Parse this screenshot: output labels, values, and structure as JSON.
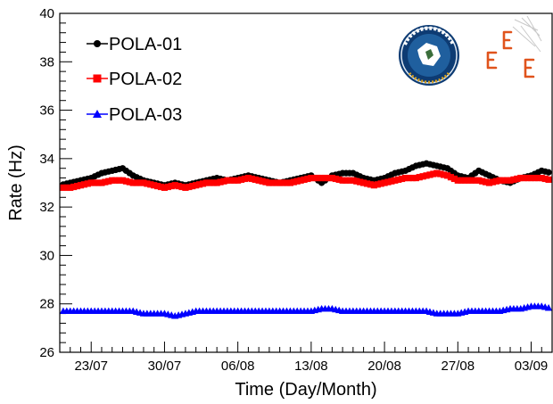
{
  "chart_data": {
    "type": "scatter",
    "xlabel": "Time (Day/Month)",
    "ylabel": "Rate (Hz)",
    "ylim": [
      26,
      40
    ],
    "yticks": [
      26,
      28,
      30,
      32,
      34,
      36,
      38,
      40
    ],
    "xlim": [
      "2017-07-20",
      "2017-09-05"
    ],
    "xticks": [
      {
        "date": "2017-07-23",
        "label": "23/07"
      },
      {
        "date": "2017-07-30",
        "label": "30/07"
      },
      {
        "date": "2017-08-06",
        "label": "06/08"
      },
      {
        "date": "2017-08-13",
        "label": "13/08"
      },
      {
        "date": "2017-08-20",
        "label": "20/08"
      },
      {
        "date": "2017-08-27",
        "label": "27/08"
      },
      {
        "date": "2017-09-03",
        "label": "03/09"
      }
    ],
    "grid": false,
    "legend_position": "top-left",
    "series": [
      {
        "name": "POLA-01",
        "marker": "circle",
        "color": "#000000",
        "x": [
          "2017-07-20",
          "2017-07-21",
          "2017-07-22",
          "2017-07-23",
          "2017-07-24",
          "2017-07-25",
          "2017-07-26",
          "2017-07-27",
          "2017-07-28",
          "2017-07-29",
          "2017-07-30",
          "2017-07-31",
          "2017-08-01",
          "2017-08-02",
          "2017-08-03",
          "2017-08-04",
          "2017-08-05",
          "2017-08-06",
          "2017-08-07",
          "2017-08-08",
          "2017-08-09",
          "2017-08-10",
          "2017-08-11",
          "2017-08-12",
          "2017-08-13",
          "2017-08-14",
          "2017-08-15",
          "2017-08-16",
          "2017-08-17",
          "2017-08-18",
          "2017-08-19",
          "2017-08-20",
          "2017-08-21",
          "2017-08-22",
          "2017-08-23",
          "2017-08-24",
          "2017-08-25",
          "2017-08-26",
          "2017-08-27",
          "2017-08-28",
          "2017-08-29",
          "2017-08-30",
          "2017-08-31",
          "2017-09-01",
          "2017-09-02",
          "2017-09-03",
          "2017-09-04",
          "2017-09-05"
        ],
        "y": [
          32.9,
          33.0,
          33.1,
          33.2,
          33.4,
          33.5,
          33.6,
          33.3,
          33.1,
          33.0,
          32.9,
          33.0,
          32.9,
          33.0,
          33.1,
          33.2,
          33.1,
          33.2,
          33.3,
          33.2,
          33.1,
          33.0,
          33.1,
          33.2,
          33.3,
          33.0,
          33.3,
          33.4,
          33.4,
          33.2,
          33.1,
          33.2,
          33.4,
          33.5,
          33.7,
          33.8,
          33.7,
          33.6,
          33.3,
          33.2,
          33.5,
          33.3,
          33.1,
          33.0,
          33.2,
          33.3,
          33.5,
          33.4
        ]
      },
      {
        "name": "POLA-02",
        "marker": "square",
        "color": "#ff0000",
        "x": [
          "2017-07-20",
          "2017-07-21",
          "2017-07-22",
          "2017-07-23",
          "2017-07-24",
          "2017-07-25",
          "2017-07-26",
          "2017-07-27",
          "2017-07-28",
          "2017-07-29",
          "2017-07-30",
          "2017-07-31",
          "2017-08-01",
          "2017-08-02",
          "2017-08-03",
          "2017-08-04",
          "2017-08-05",
          "2017-08-06",
          "2017-08-07",
          "2017-08-08",
          "2017-08-09",
          "2017-08-10",
          "2017-08-11",
          "2017-08-12",
          "2017-08-13",
          "2017-08-14",
          "2017-08-15",
          "2017-08-16",
          "2017-08-17",
          "2017-08-18",
          "2017-08-19",
          "2017-08-20",
          "2017-08-21",
          "2017-08-22",
          "2017-08-23",
          "2017-08-24",
          "2017-08-25",
          "2017-08-26",
          "2017-08-27",
          "2017-08-28",
          "2017-08-29",
          "2017-08-30",
          "2017-08-31",
          "2017-09-01",
          "2017-09-02",
          "2017-09-03",
          "2017-09-04",
          "2017-09-05"
        ],
        "y": [
          32.8,
          32.8,
          32.9,
          33.0,
          33.0,
          33.1,
          33.1,
          33.0,
          33.0,
          32.9,
          32.8,
          32.9,
          32.8,
          32.9,
          33.0,
          33.0,
          33.1,
          33.1,
          33.2,
          33.1,
          33.0,
          33.0,
          33.0,
          33.1,
          33.2,
          33.2,
          33.2,
          33.1,
          33.1,
          33.0,
          32.9,
          33.0,
          33.1,
          33.2,
          33.2,
          33.3,
          33.4,
          33.3,
          33.1,
          33.1,
          33.1,
          33.0,
          33.1,
          33.1,
          33.2,
          33.2,
          33.2,
          33.1
        ]
      },
      {
        "name": "POLA-03",
        "marker": "triangle",
        "color": "#0000ff",
        "x": [
          "2017-07-20",
          "2017-07-21",
          "2017-07-22",
          "2017-07-23",
          "2017-07-24",
          "2017-07-25",
          "2017-07-26",
          "2017-07-27",
          "2017-07-28",
          "2017-07-29",
          "2017-07-30",
          "2017-07-31",
          "2017-08-01",
          "2017-08-02",
          "2017-08-03",
          "2017-08-04",
          "2017-08-05",
          "2017-08-06",
          "2017-08-07",
          "2017-08-08",
          "2017-08-09",
          "2017-08-10",
          "2017-08-11",
          "2017-08-12",
          "2017-08-13",
          "2017-08-14",
          "2017-08-15",
          "2017-08-16",
          "2017-08-17",
          "2017-08-18",
          "2017-08-19",
          "2017-08-20",
          "2017-08-21",
          "2017-08-22",
          "2017-08-23",
          "2017-08-24",
          "2017-08-25",
          "2017-08-26",
          "2017-08-27",
          "2017-08-28",
          "2017-08-29",
          "2017-08-30",
          "2017-08-31",
          "2017-09-01",
          "2017-09-02",
          "2017-09-03",
          "2017-09-04",
          "2017-09-05"
        ],
        "y": [
          27.7,
          27.7,
          27.7,
          27.7,
          27.7,
          27.7,
          27.7,
          27.7,
          27.6,
          27.6,
          27.6,
          27.5,
          27.6,
          27.7,
          27.7,
          27.7,
          27.7,
          27.7,
          27.7,
          27.7,
          27.7,
          27.7,
          27.7,
          27.7,
          27.7,
          27.8,
          27.8,
          27.7,
          27.7,
          27.7,
          27.7,
          27.7,
          27.7,
          27.7,
          27.7,
          27.7,
          27.6,
          27.6,
          27.6,
          27.7,
          27.7,
          27.7,
          27.7,
          27.8,
          27.8,
          27.9,
          27.9,
          27.8
        ]
      }
    ]
  },
  "logos": {
    "left": "polarquest-badge-logo",
    "right": "eee-project-logo"
  }
}
